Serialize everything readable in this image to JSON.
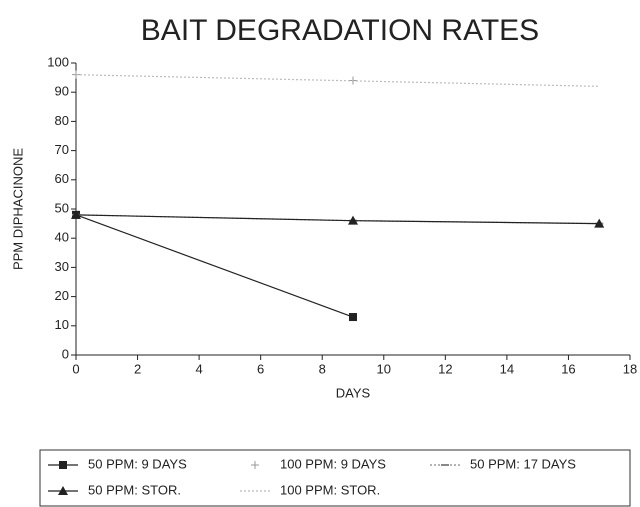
{
  "chart_data": {
    "type": "line",
    "title": "BAIT DEGRADATION RATES",
    "x_label": "DAYS",
    "y_label": "PPM DIPHACINONE",
    "xlim": [
      0,
      18
    ],
    "xticks": [
      0,
      2,
      4,
      6,
      8,
      10,
      12,
      14,
      16,
      18
    ],
    "ylim": [
      0,
      100
    ],
    "yticks": [
      0,
      10,
      20,
      30,
      40,
      50,
      60,
      70,
      80,
      90,
      100
    ],
    "series": [
      {
        "name": "50 PPM: 9 DAYS",
        "color": "#222222",
        "marker": "square",
        "line": "solid",
        "x": [
          0,
          9
        ],
        "values": [
          48,
          13
        ]
      },
      {
        "name": "100 PPM: 9 DAYS",
        "color": "#999999",
        "marker": "plus",
        "line": "none",
        "x": [
          0,
          9
        ],
        "values": [
          96,
          94
        ]
      },
      {
        "name": "50 PPM: 17 DAYS",
        "color": "#888888",
        "marker": "dash",
        "line": "dotted",
        "x": [
          0,
          9,
          17
        ],
        "values": [
          48,
          46,
          45
        ]
      },
      {
        "name": "50 PPM: STOR.",
        "color": "#222222",
        "marker": "triangle",
        "line": "solid",
        "x": [
          0,
          9,
          17
        ],
        "values": [
          48,
          46,
          45
        ]
      },
      {
        "name": "100 PPM: STOR.",
        "color": "#bbbbbb",
        "marker": "none",
        "line": "dotted",
        "x": [
          0,
          17
        ],
        "values": [
          96,
          92
        ]
      }
    ]
  }
}
